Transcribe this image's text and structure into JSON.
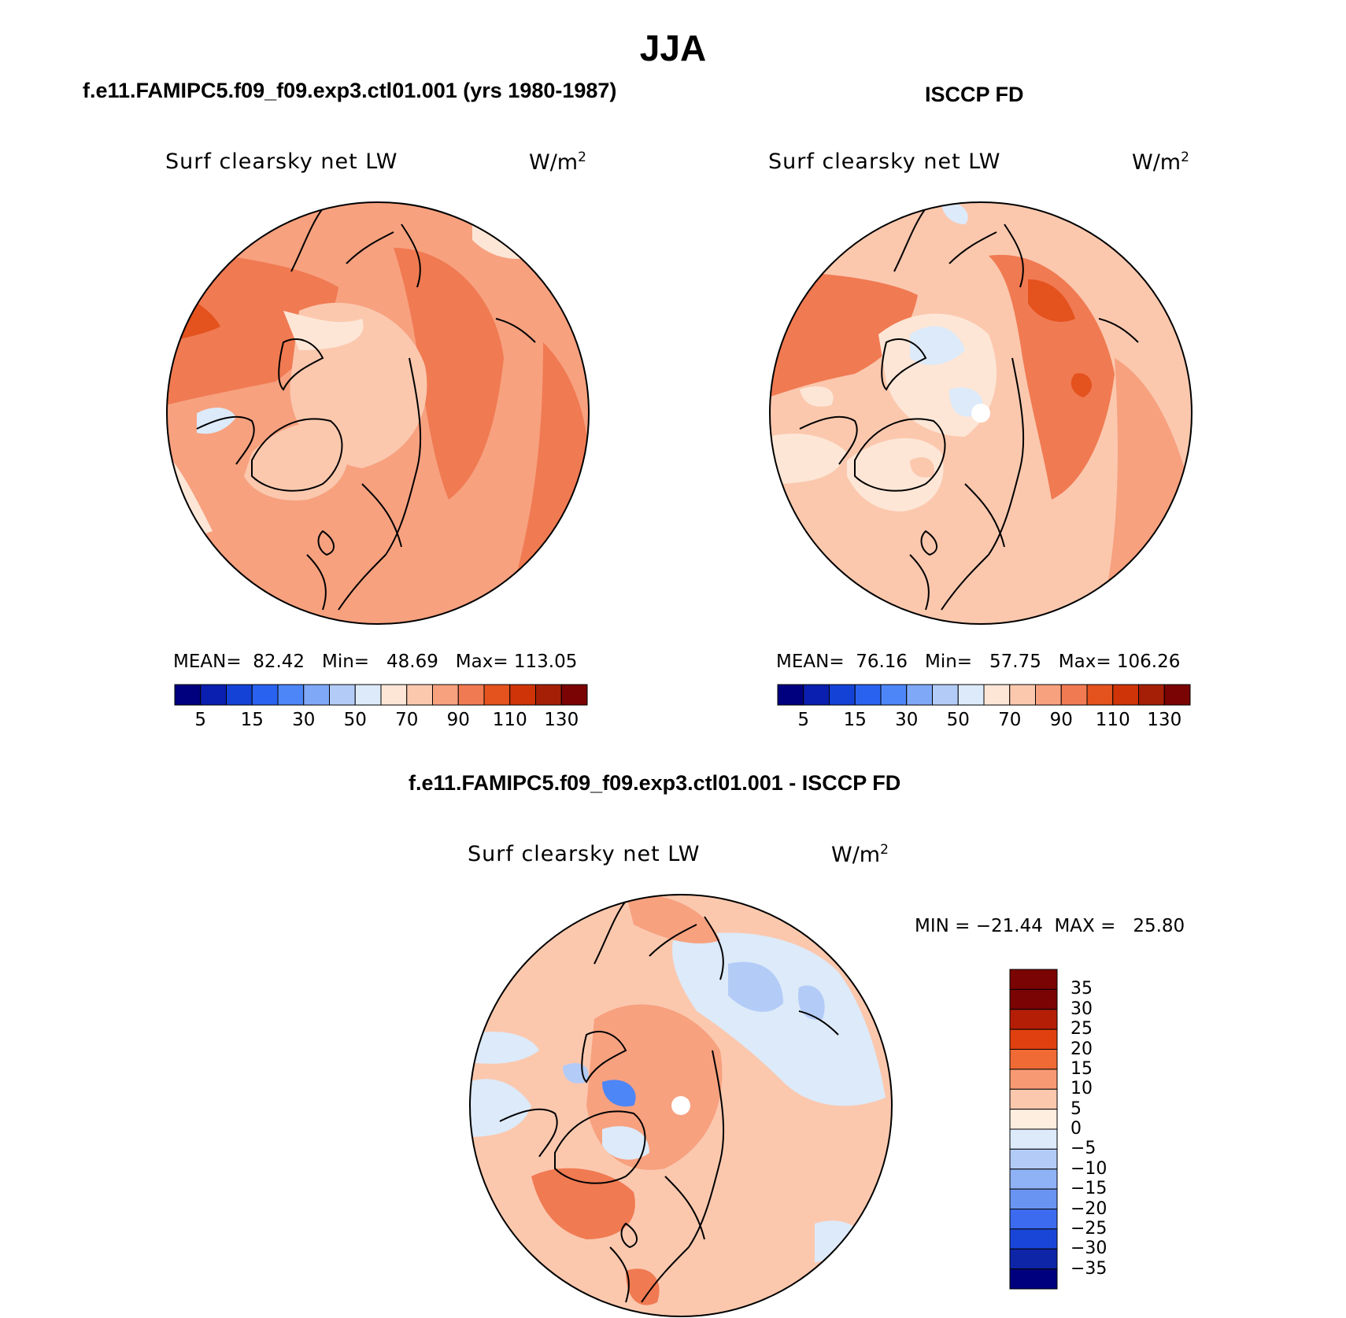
{
  "title": "JJA",
  "panels": [
    {
      "id": "model",
      "heading": "f.e11.FAMIPC5.f09_f09.exp3.ctl01.001 (yrs 1980-1987)",
      "variable": "Surf clearsky net LW",
      "units_base": "W/m",
      "units_exp": "2",
      "stats_text": "MEAN=  82.42   Min=   48.69   Max= 113.05",
      "stats": {
        "mean": 82.42,
        "min": 48.69,
        "max": 113.05
      }
    },
    {
      "id": "obs",
      "heading": "ISCCP FD",
      "variable": "Surf clearsky net LW",
      "units_base": "W/m",
      "units_exp": "2",
      "stats_text": "MEAN=  76.16   Min=   57.75   Max= 106.26",
      "stats": {
        "mean": 76.16,
        "min": 57.75,
        "max": 106.26
      }
    },
    {
      "id": "diff",
      "heading": "f.e11.FAMIPC5.f09_f09.exp3.ctl01.001 - ISCCP FD",
      "variable": "Surf clearsky net LW",
      "units_base": "W/m",
      "units_exp": "2",
      "stats_text": "MIN = −21.44  MAX =   25.80",
      "stats": {
        "min": -21.44,
        "max": 25.8
      }
    }
  ],
  "colorbar_abs": {
    "colors": [
      "#00007f",
      "#0a1fb0",
      "#1442d6",
      "#2a62f0",
      "#4d86f7",
      "#7fa8f7",
      "#b3cbf7",
      "#dceaf9",
      "#fde6d6",
      "#fbc8ae",
      "#f7a17f",
      "#f07a52",
      "#e4521e",
      "#cf3409",
      "#a51f06",
      "#7a0403"
    ],
    "tick_labels": [
      "5",
      "15",
      "30",
      "50",
      "70",
      "90",
      "110",
      "130"
    ]
  },
  "colorbar_diff": {
    "colors": [
      "#7a0403",
      "#b41e06",
      "#e0400f",
      "#f06a35",
      "#f79a73",
      "#fbc8ae",
      "#fdeedf",
      "#dceaf9",
      "#b3cbf7",
      "#8fb1f5",
      "#6a94f2",
      "#3c6bf0",
      "#1a46d8",
      "#0e25a8",
      "#00007f"
    ],
    "tick_labels": [
      "35",
      "30",
      "25",
      "20",
      "15",
      "10",
      "5",
      "0",
      "−5",
      "−10",
      "−15",
      "−20",
      "−25",
      "−30",
      "−35"
    ]
  }
}
